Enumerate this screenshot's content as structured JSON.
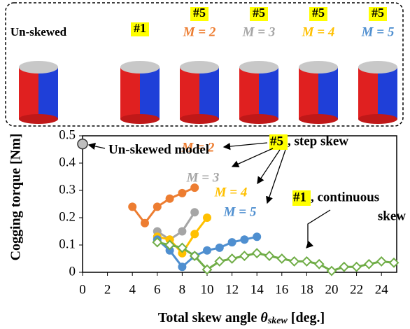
{
  "panel": {
    "models": [
      {
        "label": "Un-skewed"
      },
      {
        "tag": "#1"
      },
      {
        "tag": "#5",
        "label": "M = 2",
        "color": "#ed7d31"
      },
      {
        "tag": "#5",
        "label": "M = 3",
        "color": "#a5a5a5"
      },
      {
        "tag": "#5",
        "label": "M = 4",
        "color": "#ffc000"
      },
      {
        "tag": "#5",
        "label": "M = 5",
        "color": "#4f8fd0"
      }
    ]
  },
  "chart_data": {
    "type": "line",
    "ylabel": "Cogging torque [Nm]",
    "xlabel": {
      "text": "Total skew angle ",
      "symbol": "θ",
      "subscript": "skew",
      "unit": " [deg.]"
    },
    "xlim": [
      0,
      25
    ],
    "ylim": [
      0,
      0.5
    ],
    "xticks": [
      0,
      2,
      4,
      6,
      8,
      10,
      12,
      14,
      16,
      18,
      20,
      22,
      24
    ],
    "yticks": [
      0,
      0.1,
      0.2,
      0.3,
      0.4,
      0.5
    ],
    "series": [
      {
        "name": "M = 2",
        "color": "#ed7d31",
        "marker": "circle",
        "x": [
          4,
          5,
          6,
          7,
          8,
          9
        ],
        "values": [
          0.24,
          0.18,
          0.24,
          0.27,
          0.29,
          0.31
        ]
      },
      {
        "name": "M = 3",
        "color": "#a5a5a5",
        "marker": "circle",
        "x": [
          6,
          7,
          8,
          9
        ],
        "values": [
          0.15,
          0.12,
          0.15,
          0.22
        ]
      },
      {
        "name": "M = 4",
        "color": "#ffc000",
        "marker": "circle",
        "x": [
          6,
          7,
          8,
          9,
          10
        ],
        "values": [
          0.13,
          0.12,
          0.07,
          0.14,
          0.2
        ]
      },
      {
        "name": "M = 5",
        "color": "#4f8fd0",
        "marker": "circle",
        "x": [
          6,
          7,
          8,
          9,
          10,
          11,
          12,
          13,
          14
        ],
        "values": [
          0.12,
          0.08,
          0.02,
          0.06,
          0.08,
          0.09,
          0.11,
          0.12,
          0.13
        ]
      },
      {
        "color": "#70ad47",
        "marker": "diamond",
        "x": [
          6,
          7,
          8,
          9,
          10,
          11,
          12,
          13,
          14,
          15,
          16,
          17,
          18,
          19,
          20,
          21,
          22,
          23,
          24,
          25
        ],
        "values": [
          0.11,
          0.1,
          0.09,
          0.06,
          0.01,
          0.04,
          0.05,
          0.06,
          0.07,
          0.06,
          0.05,
          0.04,
          0.04,
          0.03,
          0.005,
          0.02,
          0.02,
          0.03,
          0.04,
          0.035
        ]
      },
      {
        "color": "#bfbfbf",
        "marker": "big-circle",
        "x": [
          0
        ],
        "values": [
          0.47
        ]
      }
    ],
    "annotations": {
      "unskewed": "Un-skewed model",
      "step_tag": "#5",
      "step": ", step skew",
      "cont_tag": "#1",
      "cont": ", continuous",
      "cont2": "skew"
    }
  }
}
